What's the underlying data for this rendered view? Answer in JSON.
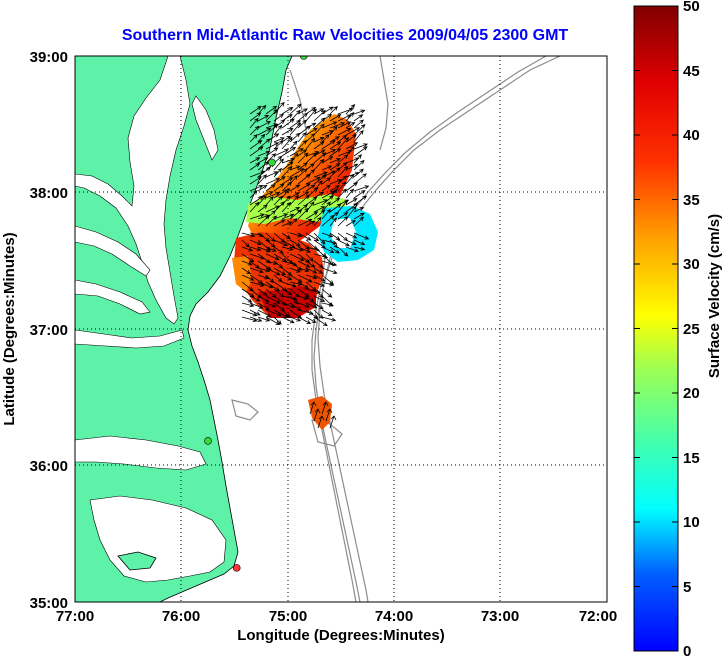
{
  "title": "Southern Mid-Atlantic Raw Velocities 2009/04/05 2300 GMT",
  "x_axis": {
    "label": "Longitude (Degrees:Minutes)",
    "ticks": [
      {
        "value": -77,
        "label": "77:00"
      },
      {
        "value": -76,
        "label": "76:00"
      },
      {
        "value": -75,
        "label": "75:00"
      },
      {
        "value": -74,
        "label": "74:00"
      },
      {
        "value": -73,
        "label": "73:00"
      },
      {
        "value": -72,
        "label": "72:00"
      }
    ]
  },
  "y_axis": {
    "label": "Latitude (Degrees:Minutes)",
    "ticks": [
      {
        "value": 39,
        "label": "39:00"
      },
      {
        "value": 38,
        "label": "38:00"
      },
      {
        "value": 37,
        "label": "37:00"
      },
      {
        "value": 36,
        "label": "36:00"
      },
      {
        "value": 35,
        "label": "35:00"
      }
    ]
  },
  "colorbar": {
    "label": "Surface Velocity (cm/s)",
    "min": 0,
    "max": 50,
    "ticks": [
      {
        "value": 50,
        "label": "50"
      },
      {
        "value": 45,
        "label": "45"
      },
      {
        "value": 40,
        "label": "40"
      },
      {
        "value": 35,
        "label": "35"
      },
      {
        "value": 30,
        "label": "30"
      },
      {
        "value": 25,
        "label": "25"
      },
      {
        "value": 20,
        "label": "20"
      },
      {
        "value": 15,
        "label": "15"
      },
      {
        "value": 10,
        "label": "10"
      },
      {
        "value": 5,
        "label": "5"
      },
      {
        "value": 0,
        "label": "0"
      }
    ]
  },
  "map": {
    "lon_range": [
      -77,
      -72
    ],
    "lat_range": [
      35,
      39
    ],
    "grid": true,
    "land_color": "#5ef2a9",
    "bathymetry_color": "#8c8c8c",
    "stations": [
      {
        "lon": -74.85,
        "lat": 39.0,
        "color": "#33dd33"
      },
      {
        "lon": -75.15,
        "lat": 38.22,
        "color": "#33dd33"
      },
      {
        "lon": -75.75,
        "lat": 36.18,
        "color": "#33dd33"
      },
      {
        "lon": -75.48,
        "lat": 35.25,
        "color": "#ff3333"
      }
    ]
  },
  "colors": {
    "title": "#0000ff"
  }
}
